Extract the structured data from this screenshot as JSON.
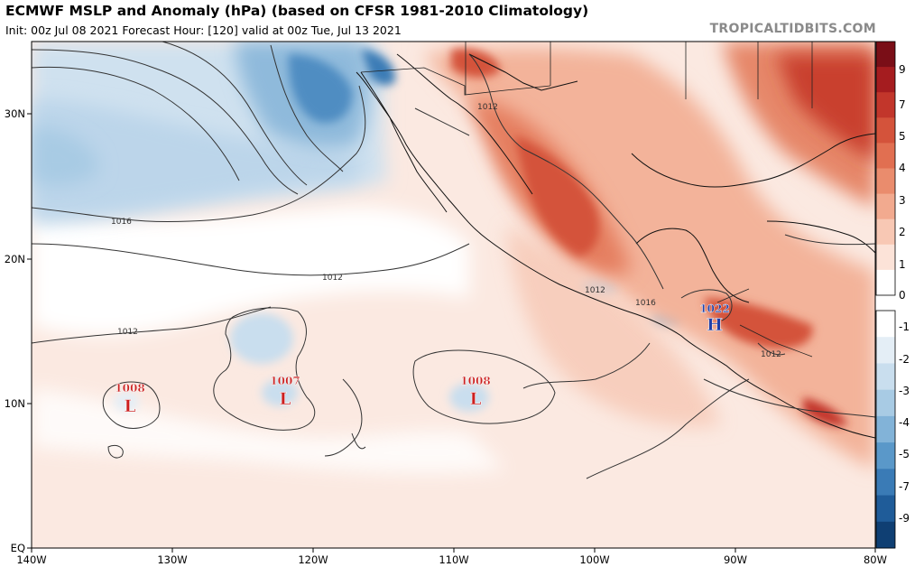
{
  "header": {
    "title": "ECMWF MSLP and Anomaly (hPa) (based on CFSR 1981-2010 Climatology)",
    "subtitle": "Init: 00z Jul 08 2021   Forecast Hour: [120]   valid at 00z Tue, Jul 13 2021",
    "brand": "TROPICALTIDBITS.COM"
  },
  "axes": {
    "lon_labels": [
      "140W",
      "130W",
      "120W",
      "110W",
      "100W",
      "90W",
      "80W"
    ],
    "lat_labels": [
      "30N",
      "20N",
      "10N",
      "EQ"
    ]
  },
  "colorbar": {
    "labels": [
      "9",
      "7",
      "5",
      "4",
      "3",
      "2",
      "1",
      "0",
      "-1",
      "-2",
      "-3",
      "-4",
      "-5",
      "-7",
      "-9"
    ],
    "positive_colors": [
      "#7a0e17",
      "#a51c1f",
      "#c2362b",
      "#d4533b",
      "#e16f51",
      "#ea8c6d",
      "#f2aa8f",
      "#f8c8b4",
      "#fce3d8",
      "#ffffff"
    ],
    "negative_colors": [
      "#ffffff",
      "#e4eef6",
      "#c9deee",
      "#a8cbe4",
      "#82b3d8",
      "#5a98c9",
      "#3a7bb6",
      "#1f5c99",
      "#0f3f73"
    ]
  },
  "isobars": {
    "labels": [
      "1016",
      "1012",
      "1012",
      "1012",
      "1012",
      "1016",
      "1012"
    ]
  },
  "systems": [
    {
      "type": "L",
      "value": "1008",
      "color": "#cc1f1f"
    },
    {
      "type": "L",
      "value": "1007",
      "color": "#cc1f1f"
    },
    {
      "type": "L",
      "value": "1008",
      "color": "#cc1f1f"
    },
    {
      "type": "H",
      "value": "1022",
      "color": "#1f3fa8"
    }
  ],
  "colors": {
    "frame": "#000000",
    "isobar": "#333333",
    "coast": "#111111"
  }
}
